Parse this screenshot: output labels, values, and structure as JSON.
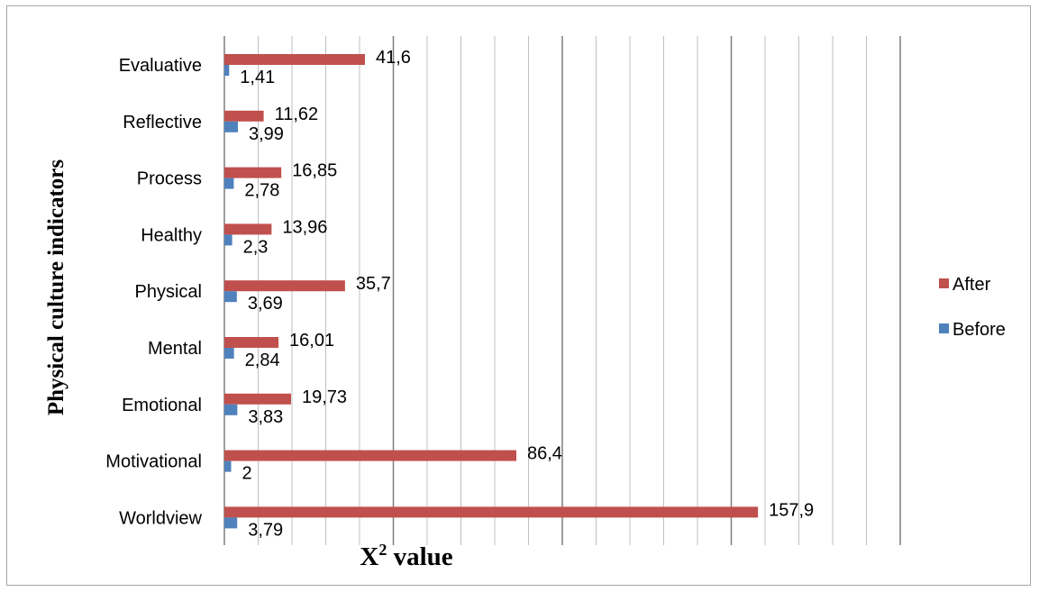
{
  "chart_data": {
    "type": "bar",
    "orientation": "horizontal",
    "categories": [
      "Evaluative",
      "Reflective",
      "Process",
      "Healthy",
      "Physical",
      "Mental",
      "Emotional",
      "Motivational",
      "Worldview"
    ],
    "series": [
      {
        "name": "Before",
        "color": "#4f81bd",
        "values": [
          1.41,
          3.99,
          2.78,
          2.3,
          3.69,
          2.84,
          3.83,
          2,
          3.79
        ],
        "labels": [
          "1,41",
          "3,99",
          "2,78",
          "2,3",
          "3,69",
          "2,84",
          "3,83",
          "2",
          "3,79"
        ]
      },
      {
        "name": "After",
        "color": "#c0504d",
        "values": [
          41.6,
          11.62,
          16.85,
          13.96,
          35.7,
          16.01,
          19.73,
          86.4,
          157.9
        ],
        "labels": [
          "41,6",
          "11,62",
          "16,85",
          "13,96",
          "35,7",
          "16,01",
          "19,73",
          "86,4",
          "157,9"
        ]
      }
    ],
    "xlabel_main": "X",
    "xlabel_sup": "2",
    "xlabel_rest": " value",
    "ylabel": "Physical culture indicators",
    "xlim": [
      0,
      200
    ],
    "gridlines_major_step": 50,
    "gridlines_minor_step": 10,
    "x_tick_labels_shown": false,
    "legend_position": "right",
    "grid": true
  }
}
